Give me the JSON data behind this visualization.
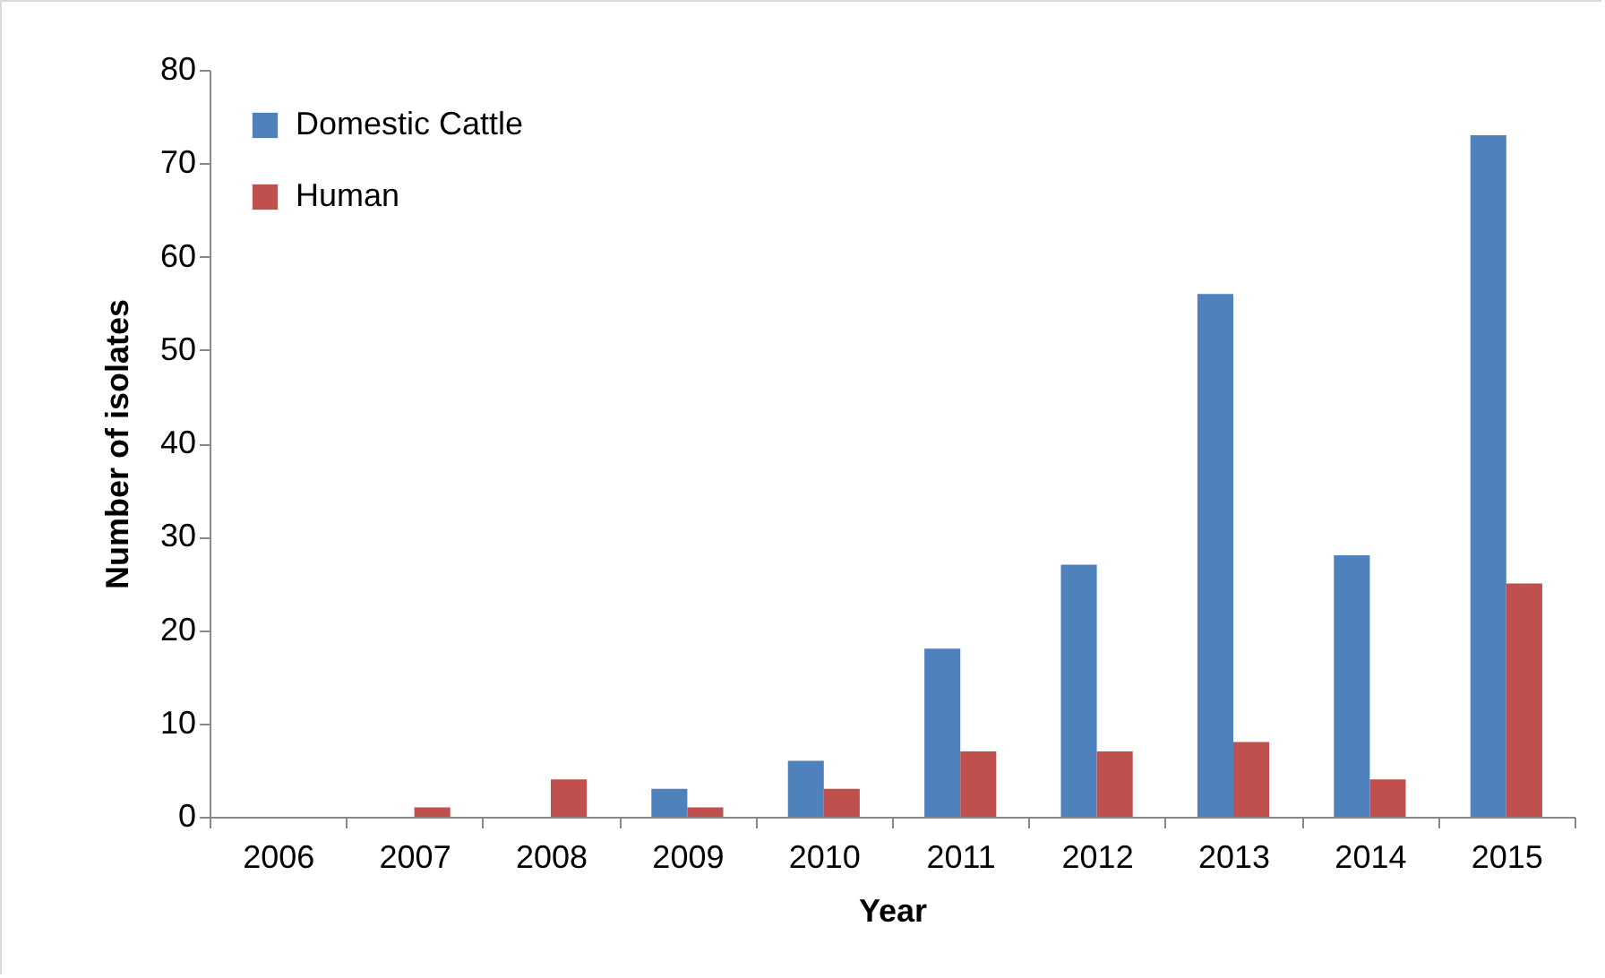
{
  "chart_data": {
    "type": "bar",
    "xlabel": "Year",
    "ylabel": "Number of isolates",
    "categories": [
      "2006",
      "2007",
      "2008",
      "2009",
      "2010",
      "2011",
      "2012",
      "2013",
      "2014",
      "2015"
    ],
    "series": [
      {
        "name": "Domestic Cattle",
        "color": "#4f81bd",
        "values": [
          0,
          0,
          0,
          3,
          6,
          18,
          27,
          56,
          28,
          73
        ]
      },
      {
        "name": "Human",
        "color": "#c0504d",
        "values": [
          0,
          1,
          4,
          1,
          3,
          7,
          7,
          8,
          4,
          25
        ]
      }
    ],
    "ylim": [
      0,
      80
    ],
    "yticks": [
      0,
      10,
      20,
      30,
      40,
      50,
      60,
      70,
      80
    ],
    "grid": false,
    "legend": "top left"
  }
}
